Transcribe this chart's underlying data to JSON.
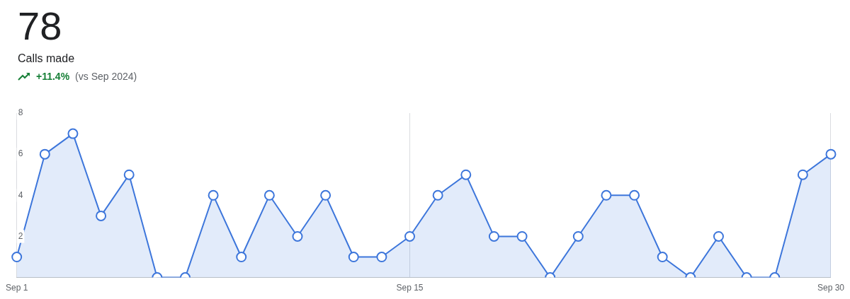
{
  "chart_data": {
    "type": "area",
    "title": "Calls made",
    "annotations": [
      "78",
      "+11.4%",
      "(vs Sep 2024)"
    ],
    "categories": [
      "Sep 1",
      null,
      null,
      null,
      null,
      null,
      null,
      null,
      null,
      null,
      null,
      null,
      null,
      null,
      "Sep 15",
      null,
      null,
      null,
      null,
      null,
      null,
      null,
      null,
      null,
      null,
      null,
      null,
      null,
      null,
      "Sep 30"
    ],
    "series": [
      {
        "color": "#3d76db",
        "values": [
          1,
          6,
          7,
          3,
          5,
          0,
          0,
          4,
          1,
          4,
          2,
          4,
          1,
          1,
          2,
          4,
          5,
          2,
          2,
          0,
          2,
          4,
          4,
          1,
          0,
          2,
          0,
          0,
          5,
          6
        ]
      }
    ],
    "ylim": [
      0,
      8
    ],
    "yticks": [
      2,
      4,
      6,
      8
    ],
    "grid": "x",
    "marker": "circle",
    "line_style": "solid",
    "legend": false
  }
}
